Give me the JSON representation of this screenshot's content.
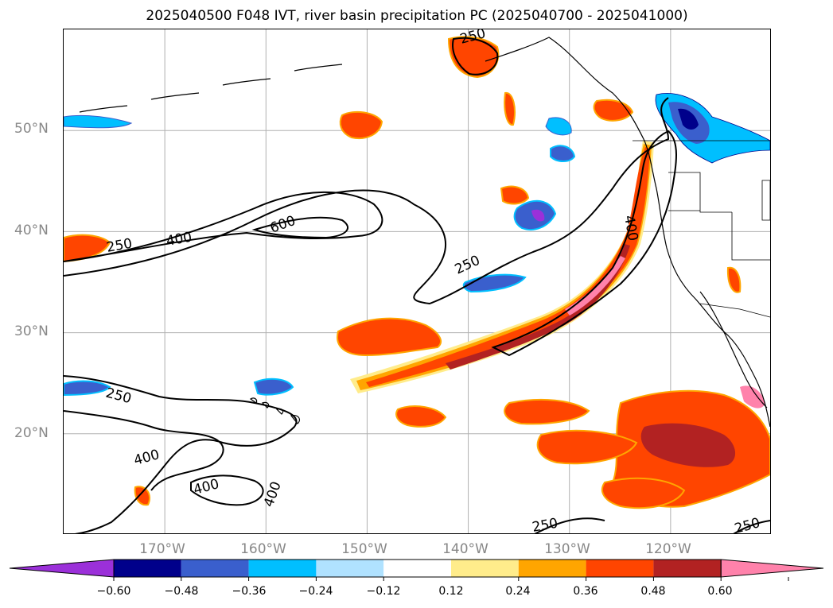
{
  "title": "2025040500 F048 IVT, river basin precipitation PC (2025040700 - 2025041000)",
  "map": {
    "lat_labels": [
      "50°N",
      "40°N",
      "30°N",
      "20°N"
    ],
    "lon_labels": [
      "170°W",
      "160°W",
      "150°W",
      "140°W",
      "130°W",
      "120°W"
    ],
    "grid_lat": [
      50,
      40,
      30,
      20
    ],
    "grid_lon": [
      -170,
      -160,
      -150,
      -140,
      -130,
      -120
    ],
    "extent": {
      "lon_min": -180,
      "lon_max": -110,
      "lat_min": 10,
      "lat_max": 60
    },
    "ivt_contour_labels": [
      "250",
      "400",
      "600",
      "250",
      "250",
      "400",
      "400",
      "400",
      "250",
      "250",
      "250",
      "400"
    ]
  },
  "colorbar": {
    "ticks": [
      "−0.60",
      "−0.48",
      "−0.36",
      "−0.24",
      "−0.12",
      "0.12",
      "0.24",
      "0.36",
      "0.48",
      "0.60"
    ],
    "colors": {
      "lt_-0.60": "#9b30d9",
      "-0.60_-0.48": "#00008b",
      "-0.48_-0.36": "#3a5fcd",
      "-0.36_-0.24": "#00bfff",
      "-0.24_-0.12": "#b0e2ff",
      "-0.12_0.12": "#ffffff",
      "0.12_0.24": "#ffec8b",
      "0.24_0.36": "#ffa500",
      "0.36_0.48": "#ff4500",
      "0.48_0.60": "#b22222",
      "gt_0.60": "#ff82ab"
    }
  }
}
